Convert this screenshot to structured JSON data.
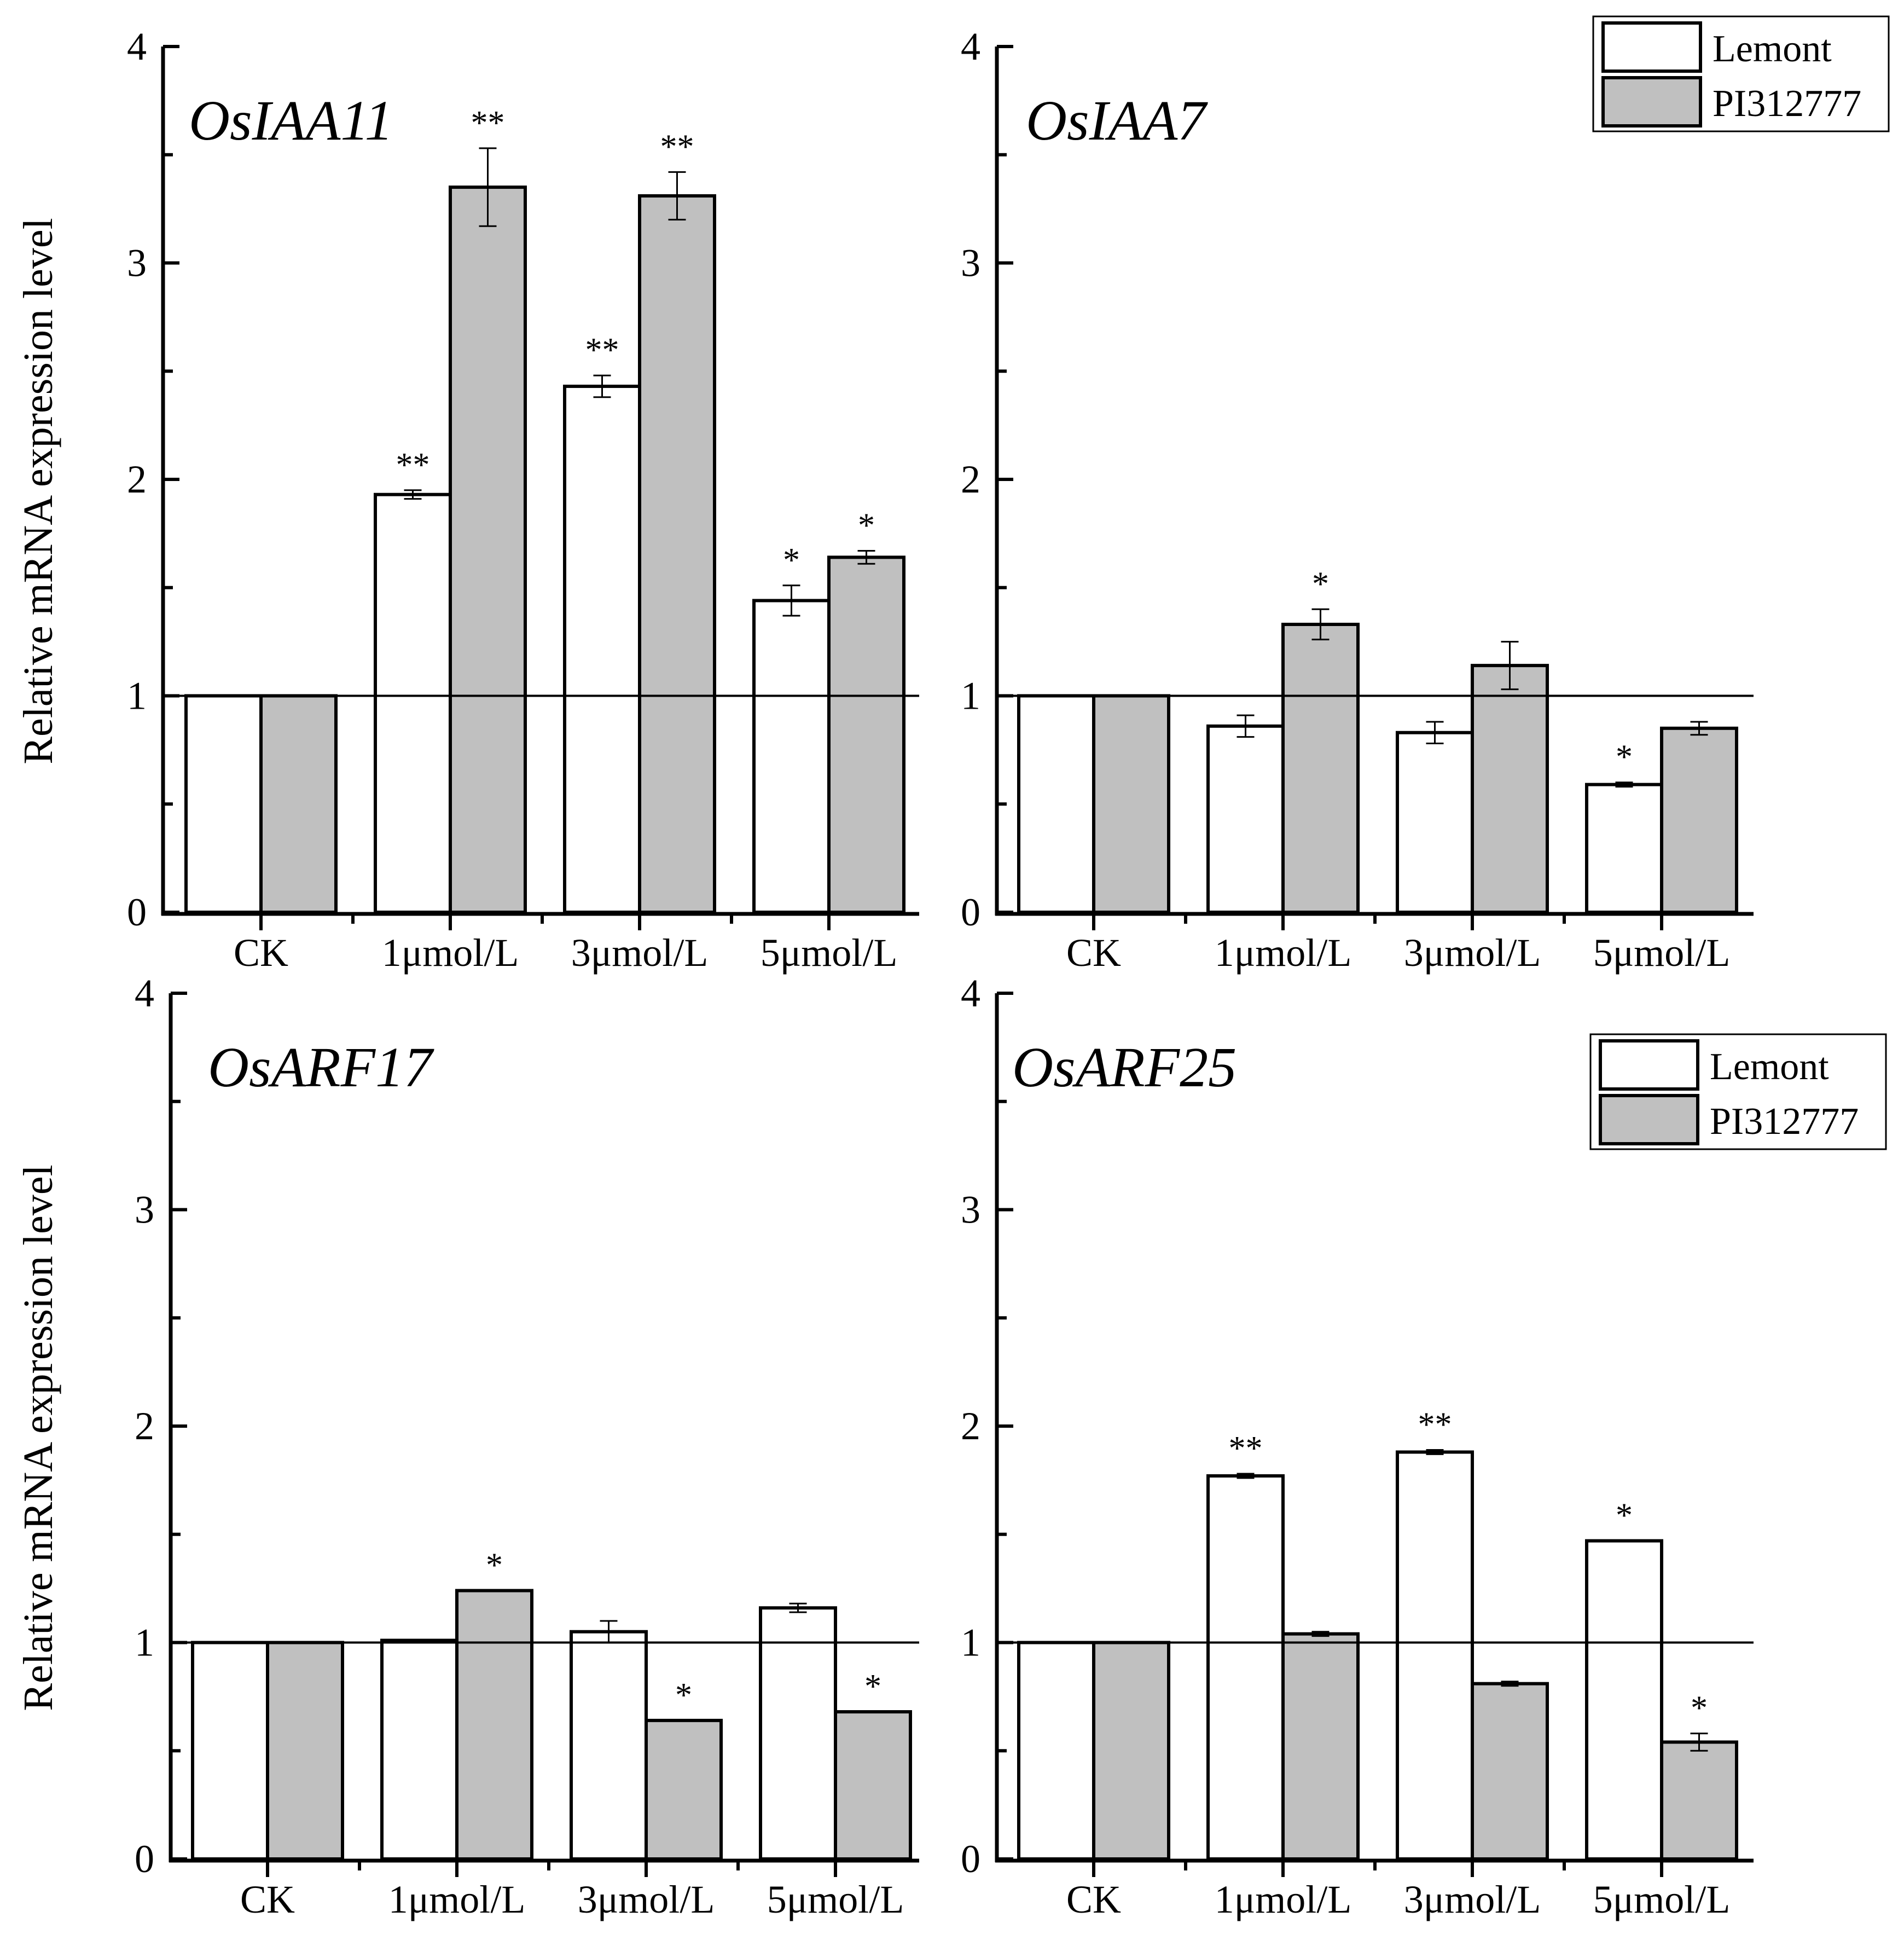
{
  "chart_data": [
    {
      "type": "bar",
      "title": "OsIAA11",
      "ylabel": "Relative mRNA expression level",
      "xlabel": "",
      "ylim": [
        0,
        4
      ],
      "yticks": [
        "0",
        "1",
        "2",
        "3",
        "4"
      ],
      "reference_line": 1,
      "categories": [
        "CK",
        "1μmol/L",
        "3μmol/L",
        "5μmol/L"
      ],
      "series": [
        {
          "name": "Lemont",
          "color": "#ffffff",
          "values": [
            1.0,
            1.93,
            2.43,
            1.44
          ],
          "errors": [
            0,
            0.02,
            0.05,
            0.07
          ],
          "sig": [
            "",
            "**",
            "**",
            "*"
          ]
        },
        {
          "name": "PI312777",
          "color": "#c0c0c0",
          "values": [
            1.0,
            3.35,
            3.31,
            1.64
          ],
          "errors": [
            0,
            0.18,
            0.11,
            0.03
          ],
          "sig": [
            "",
            "**",
            "**",
            "*"
          ]
        }
      ],
      "legend": "top-right"
    },
    {
      "type": "bar",
      "title": "OsIAA7",
      "ylabel": "",
      "xlabel": "",
      "ylim": [
        0,
        4
      ],
      "yticks": [
        "0",
        "1",
        "2",
        "3",
        "4"
      ],
      "reference_line": 1,
      "categories": [
        "CK",
        "1μmol/L",
        "3μmol/L",
        "5μmol/L"
      ],
      "series": [
        {
          "name": "Lemont",
          "color": "#ffffff",
          "values": [
            1.0,
            0.86,
            0.83,
            0.59
          ],
          "errors": [
            0,
            0.05,
            0.05,
            0.01
          ],
          "sig": [
            "",
            "",
            "",
            "*"
          ]
        },
        {
          "name": "PI312777",
          "color": "#c0c0c0",
          "values": [
            1.0,
            1.33,
            1.14,
            0.85
          ],
          "errors": [
            0,
            0.07,
            0.11,
            0.03
          ],
          "sig": [
            "",
            "*",
            "",
            ""
          ]
        }
      ]
    },
    {
      "type": "bar",
      "title": "OsARF17",
      "ylabel": "Relative mRNA expression level",
      "xlabel": "",
      "ylim": [
        0,
        4
      ],
      "yticks": [
        "0",
        "1",
        "2",
        "3",
        "4"
      ],
      "reference_line": 1,
      "categories": [
        "CK",
        "1μmol/L",
        "3μmol/L",
        "5μmol/L"
      ],
      "series": [
        {
          "name": "Lemont",
          "color": "#ffffff",
          "values": [
            1.0,
            1.01,
            1.05,
            1.16
          ],
          "errors": [
            0,
            0,
            0.05,
            0.02
          ],
          "sig": [
            "",
            "",
            "",
            ""
          ]
        },
        {
          "name": "PI312777",
          "color": "#c0c0c0",
          "values": [
            1.0,
            1.24,
            0.64,
            0.68
          ],
          "errors": [
            0,
            0,
            0,
            0
          ],
          "sig": [
            "",
            "*",
            "*",
            "*"
          ]
        }
      ]
    },
    {
      "type": "bar",
      "title": "OsARF25",
      "ylabel": "",
      "xlabel": "",
      "ylim": [
        0,
        4
      ],
      "yticks": [
        "0",
        "1",
        "2",
        "3",
        "4"
      ],
      "reference_line": 1,
      "categories": [
        "CK",
        "1μmol/L",
        "3μmol/L",
        "5μmol/L"
      ],
      "series": [
        {
          "name": "Lemont",
          "color": "#ffffff",
          "values": [
            1.0,
            1.77,
            1.88,
            1.47
          ],
          "errors": [
            0,
            0.01,
            0.01,
            0
          ],
          "sig": [
            "",
            "**",
            "**",
            "*"
          ]
        },
        {
          "name": "PI312777",
          "color": "#c0c0c0",
          "values": [
            1.0,
            1.04,
            0.81,
            0.54
          ],
          "errors": [
            0,
            0.01,
            0.01,
            0.04
          ],
          "sig": [
            "",
            "",
            "",
            "*"
          ]
        }
      ],
      "legend": "top-right"
    }
  ]
}
